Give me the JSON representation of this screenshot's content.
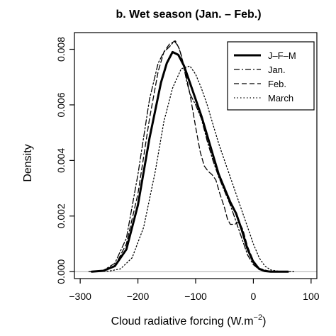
{
  "chart_data": {
    "type": "line",
    "title": "b. Wet season (Jan. – Feb.)",
    "xlabel": "Cloud radiative forcing (W.m",
    "xlabel_superscript": "−2",
    "xlabel_suffix": ")",
    "ylabel": "Density",
    "xlim": [
      -310,
      110
    ],
    "ylim": [
      -0.00025,
      0.0086
    ],
    "x_ticks": [
      -300,
      -200,
      -100,
      0,
      100
    ],
    "x_tick_labels": [
      "−300",
      "−200",
      "−100",
      "0",
      "100"
    ],
    "y_ticks": [
      0,
      0.002,
      0.004,
      0.006,
      0.008
    ],
    "y_tick_labels": [
      "0.000",
      "0.002",
      "0.004",
      "0.006",
      "0.008"
    ],
    "baseline": 0,
    "grid": false,
    "legend_position": "top-right",
    "series": [
      {
        "name": "J–F–M",
        "line_style": "solid",
        "line_weight": "thick",
        "color": "#000000",
        "x": [
          -280,
          -260,
          -240,
          -220,
          -200,
          -180,
          -160,
          -150,
          -140,
          -130,
          -120,
          -110,
          -100,
          -90,
          -80,
          -70,
          -60,
          -50,
          -40,
          -30,
          -20,
          -10,
          0,
          10,
          20,
          30,
          40,
          50,
          60
        ],
        "y": [
          0,
          3e-05,
          0.0002,
          0.0008,
          0.0024,
          0.0048,
          0.0068,
          0.0075,
          0.0079,
          0.0078,
          0.0074,
          0.0068,
          0.0062,
          0.0056,
          0.0049,
          0.0042,
          0.0035,
          0.003,
          0.0025,
          0.0021,
          0.0015,
          0.0008,
          0.00035,
          0.0001,
          2e-05,
          0,
          0,
          0,
          0
        ]
      },
      {
        "name": "Jan.",
        "line_style": "dashdot",
        "line_weight": "thin",
        "color": "#000000",
        "x": [
          -285,
          -260,
          -240,
          -220,
          -200,
          -180,
          -165,
          -155,
          -145,
          -137,
          -130,
          -125,
          -120,
          -115,
          -110,
          -100,
          -90,
          -80,
          -70,
          -60,
          -50,
          -40,
          -30,
          -20,
          -10,
          0,
          10,
          20,
          40,
          60
        ],
        "y": [
          0,
          4e-05,
          0.0003,
          0.0012,
          0.0035,
          0.0062,
          0.0075,
          0.0079,
          0.0081,
          0.0083,
          0.0081,
          0.0078,
          0.0073,
          0.0068,
          0.0064,
          0.006,
          0.0055,
          0.0047,
          0.004,
          0.0034,
          0.0029,
          0.0024,
          0.0018,
          0.0012,
          0.0006,
          0.00025,
          8e-05,
          2e-05,
          0,
          0
        ]
      },
      {
        "name": "Feb.",
        "line_style": "dashed",
        "line_weight": "thin",
        "color": "#000000",
        "x": [
          -280,
          -260,
          -240,
          -220,
          -200,
          -180,
          -165,
          -155,
          -145,
          -135,
          -128,
          -120,
          -110,
          -100,
          -92,
          -85,
          -78,
          -72,
          -65,
          -58,
          -50,
          -45,
          -40,
          -32,
          -25,
          -18,
          -10,
          0,
          10,
          30,
          60
        ],
        "y": [
          0,
          3e-05,
          0.0002,
          0.001,
          0.0028,
          0.0055,
          0.0072,
          0.0079,
          0.0082,
          0.0083,
          0.008,
          0.0074,
          0.0064,
          0.0052,
          0.0043,
          0.0038,
          0.0036,
          0.0035,
          0.0033,
          0.0028,
          0.0023,
          0.0019,
          0.0017,
          0.0017,
          0.0018,
          0.0015,
          0.0009,
          0.0004,
          0.00012,
          0,
          0
        ]
      },
      {
        "name": "March",
        "line_style": "dotted",
        "line_weight": "thin",
        "color": "#000000",
        "x": [
          -270,
          -250,
          -230,
          -210,
          -190,
          -170,
          -155,
          -140,
          -125,
          -110,
          -100,
          -90,
          -80,
          -70,
          -60,
          -50,
          -40,
          -30,
          -20,
          -10,
          0,
          10,
          20,
          30,
          45,
          60,
          70
        ],
        "y": [
          0,
          2e-05,
          0.0001,
          0.0005,
          0.0016,
          0.0036,
          0.0054,
          0.0066,
          0.0073,
          0.0074,
          0.0071,
          0.0066,
          0.006,
          0.0053,
          0.0046,
          0.004,
          0.0034,
          0.0028,
          0.0022,
          0.0016,
          0.001,
          0.0005,
          0.0002,
          6e-05,
          1e-05,
          0,
          0
        ]
      }
    ]
  }
}
